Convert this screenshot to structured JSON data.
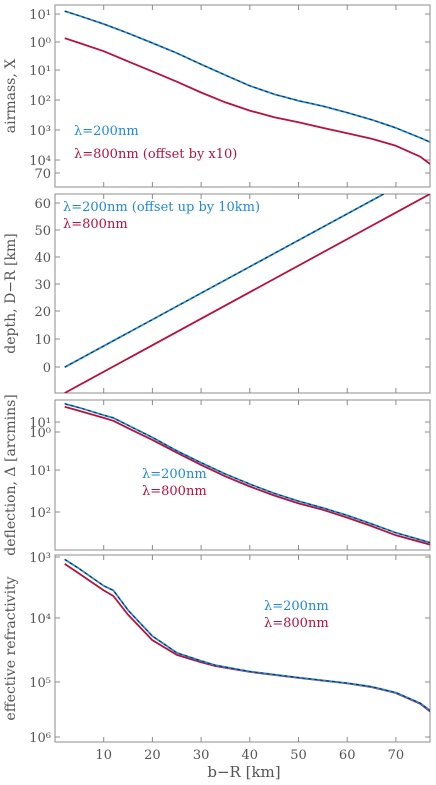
{
  "figure": {
    "xlabel": "b−R [km]",
    "x_ticks": [
      "10",
      "20",
      "30",
      "40",
      "50",
      "60",
      "70"
    ],
    "colors": {
      "blue": "#1f8ad8",
      "red": "#b8123c",
      "black": "#1a1a1a",
      "frame": "#8c8c8c"
    }
  },
  "chart_data": [
    {
      "type": "line",
      "xlim": [
        0,
        77
      ],
      "ylim_log10": [
        -5,
        1.7
      ],
      "yscale": "log",
      "ylabel": "airmass, X",
      "ytick_labels": [
        "10⁴",
        "10³",
        "10²",
        "10¹",
        "10⁰",
        "10¹"
      ],
      "legend": [
        "λ=200nm",
        "λ=800nm (offset by x10)"
      ],
      "series": [
        {
          "name": "λ=200nm",
          "color": "blue",
          "x": [
            2,
            5,
            10,
            15,
            20,
            25,
            30,
            35,
            40,
            45,
            50,
            55,
            60,
            65,
            70,
            75,
            77
          ],
          "y": [
            30,
            20,
            10,
            4.6,
            2.0,
            0.85,
            0.33,
            0.13,
            0.053,
            0.026,
            0.015,
            0.0095,
            0.0055,
            0.003,
            0.0015,
            0.00065,
            0.00045
          ]
        },
        {
          "name": "λ=800nm (offset by x10)",
          "color": "red",
          "x": [
            2,
            5,
            10,
            15,
            20,
            25,
            30,
            35,
            40,
            45,
            50,
            55,
            60,
            65,
            70,
            75,
            77
          ],
          "y": [
            3.0,
            2.0,
            1.0,
            0.42,
            0.18,
            0.075,
            0.03,
            0.013,
            0.0065,
            0.0037,
            0.0024,
            0.0015,
            0.00095,
            0.0006,
            0.00033,
            0.00013,
            7e-05
          ]
        }
      ]
    },
    {
      "type": "line",
      "xlim": [
        0,
        77
      ],
      "ylim": [
        0,
        77
      ],
      "yscale": "linear",
      "ylabel": "depth, D−R [km]",
      "ytick_labels": [
        "0",
        "10",
        "20",
        "30",
        "40",
        "50",
        "60",
        "70"
      ],
      "legend": [
        "λ=200nm (offset up by 10km)",
        "λ=800nm"
      ],
      "series": [
        {
          "name": "λ=200nm (offset up by 10km)",
          "color": "blue",
          "x": [
            2,
            67.5
          ],
          "y": [
            10,
            77
          ]
        },
        {
          "name": "λ=800nm",
          "color": "red",
          "x": [
            2,
            77
          ],
          "y": [
            0,
            77
          ]
        }
      ]
    },
    {
      "type": "line",
      "xlim": [
        0,
        77
      ],
      "ylim_log10": [
        -3.2,
        1.7
      ],
      "yscale": "log",
      "ylabel": "deflection, Δ [arcmins]",
      "ytick_labels": [
        "10²",
        "10¹",
        "10⁰",
        "10¹"
      ],
      "legend": [
        "λ=200nm",
        "λ=800nm"
      ],
      "series": [
        {
          "name": "λ=200nm",
          "color": "blue",
          "x": [
            2,
            5,
            10,
            12,
            15,
            20,
            25,
            30,
            35,
            40,
            45,
            50,
            55,
            60,
            65,
            70,
            77
          ],
          "y": [
            38,
            28,
            16,
            13,
            7.5,
            3.0,
            1.1,
            0.45,
            0.19,
            0.09,
            0.045,
            0.025,
            0.015,
            0.0085,
            0.0045,
            0.0023,
            0.0011
          ]
        },
        {
          "name": "λ=800nm",
          "color": "red",
          "x": [
            2,
            5,
            10,
            12,
            15,
            20,
            25,
            30,
            35,
            40,
            45,
            50,
            55,
            60,
            65,
            70,
            77
          ],
          "y": [
            30,
            22,
            13,
            10.5,
            6.0,
            2.5,
            0.95,
            0.38,
            0.16,
            0.075,
            0.038,
            0.021,
            0.013,
            0.0072,
            0.0038,
            0.0019,
            0.00095
          ]
        }
      ]
    },
    {
      "type": "line",
      "xlim": [
        0,
        77
      ],
      "ylim_log10": [
        -6,
        -3
      ],
      "yscale": "log",
      "ylabel": "effective refractivity",
      "ytick_labels": [
        "10⁶",
        "10⁵",
        "10⁴",
        "10³"
      ],
      "legend": [
        "λ=200nm",
        "λ=800nm"
      ],
      "series": [
        {
          "name": "λ=200nm",
          "color": "blue",
          "x": [
            2,
            5,
            10,
            12,
            15,
            20,
            25,
            30,
            33,
            40,
            50,
            60,
            65,
            70,
            75,
            77
          ],
          "y": [
            0.00085,
            0.0006,
            0.00032,
            0.00027,
            0.00013,
            5e-05,
            2.7e-05,
            2e-05,
            1.7e-05,
            1.35e-05,
            1.08e-05,
            8.8e-06,
            7.7e-06,
            6.2e-06,
            4.2e-06,
            3.2e-06
          ]
        },
        {
          "name": "λ=800nm",
          "color": "red",
          "x": [
            2,
            5,
            10,
            12,
            15,
            20,
            25,
            30,
            33,
            40,
            50,
            60,
            65,
            70,
            75,
            77
          ],
          "y": [
            0.00072,
            0.0005,
            0.00027,
            0.00022,
            0.00011,
            4.3e-05,
            2.5e-05,
            1.9e-05,
            1.65e-05,
            1.33e-05,
            1.07e-05,
            8.7e-06,
            7.6e-06,
            6.1e-06,
            4.1e-06,
            3.1e-06
          ]
        }
      ]
    }
  ]
}
